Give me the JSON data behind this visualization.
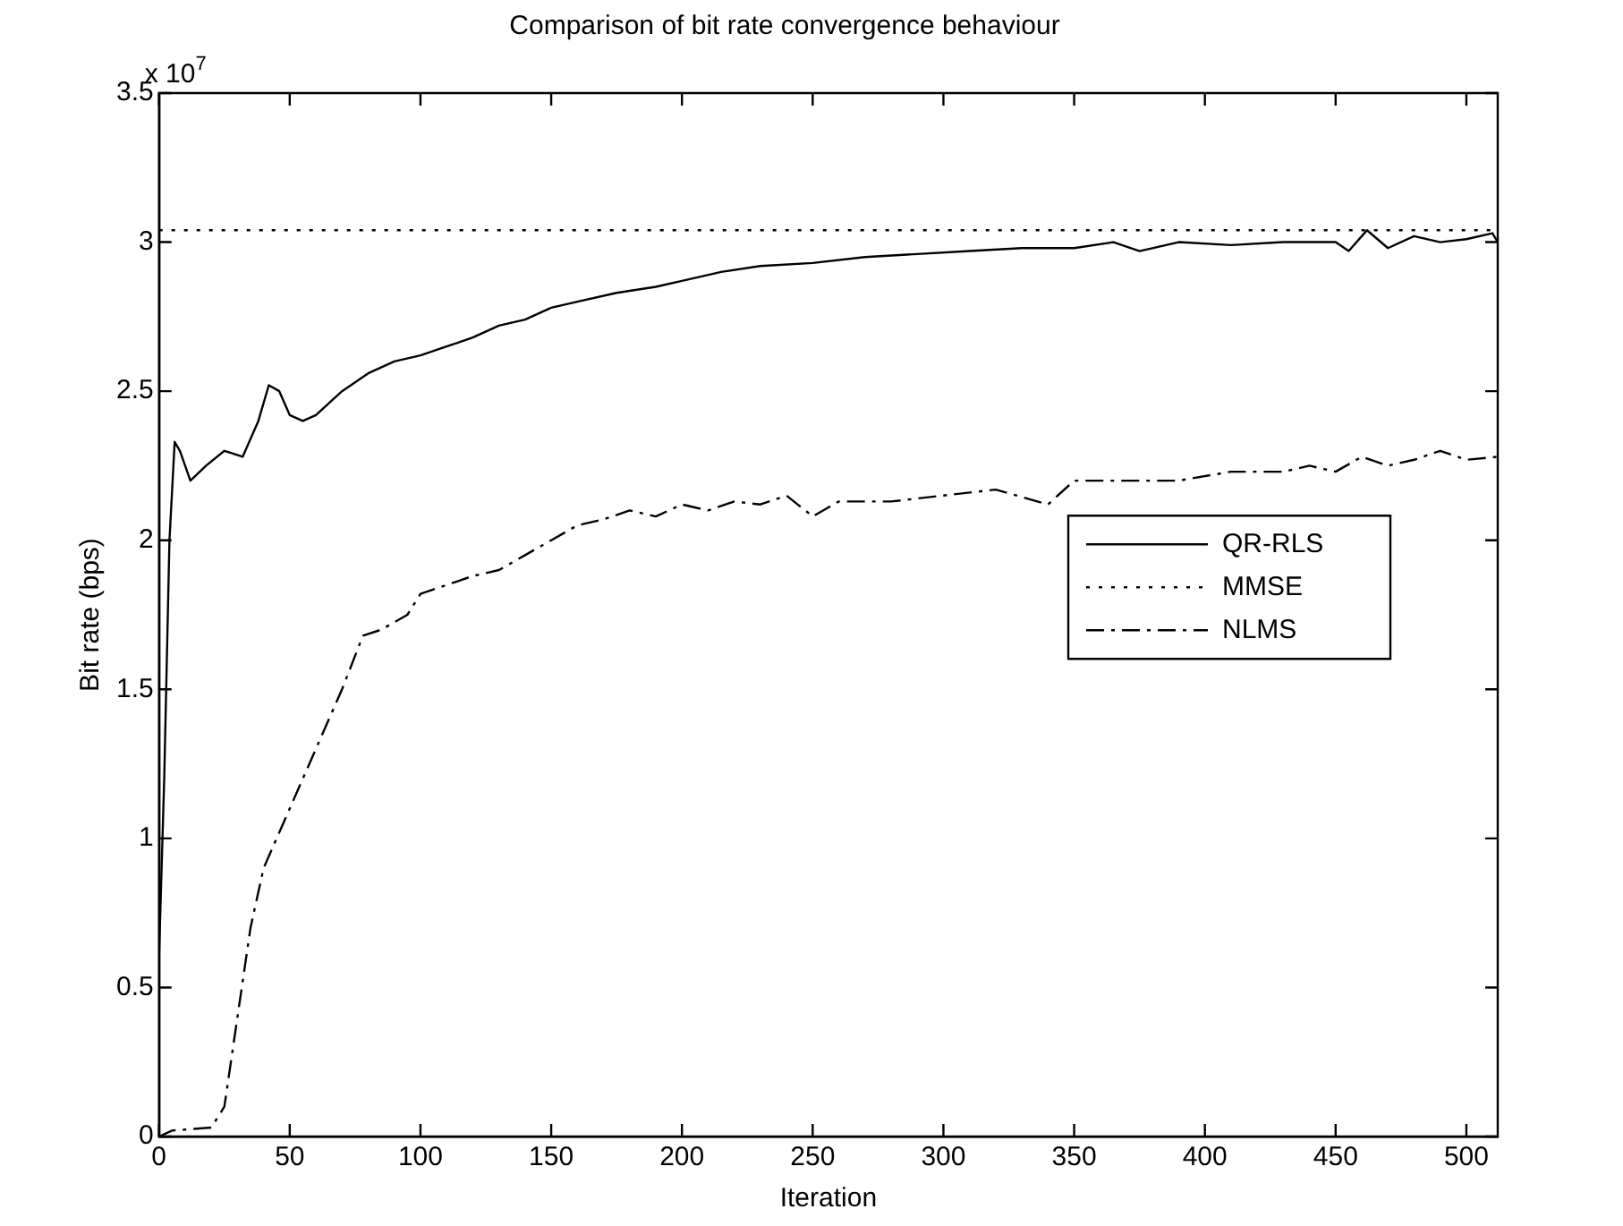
{
  "chart_data": {
    "type": "line",
    "title": "Comparison of bit rate convergence behaviour",
    "xlabel": "Iteration",
    "ylabel": "Bit rate (bps)",
    "annotations": [
      "x 10$^{7}$"
    ],
    "xlim": [
      0,
      512
    ],
    "xticks": [
      0,
      50,
      100,
      150,
      200,
      250,
      300,
      350,
      400,
      450,
      500
    ],
    "ylim": [
      0,
      3.5
    ],
    "yticks": [
      0,
      0.5,
      1,
      1.5,
      2,
      2.5,
      3,
      3.5
    ],
    "grid": false,
    "legend": "right",
    "marker": "none",
    "series": [
      {
        "name": "QR-RLS",
        "color": "#000000",
        "line_style": "solid",
        "x": [
          0,
          2,
          4,
          6,
          8,
          12,
          18,
          25,
          32,
          38,
          42,
          46,
          50,
          55,
          60,
          70,
          80,
          90,
          100,
          110,
          120,
          130,
          140,
          150,
          160,
          175,
          190,
          200,
          215,
          230,
          250,
          270,
          290,
          310,
          330,
          350,
          365,
          375,
          390,
          410,
          430,
          450,
          455,
          462,
          470,
          480,
          490,
          500,
          510,
          512
        ],
        "values": [
          0.6,
          1.2,
          2.0,
          2.33,
          2.3,
          2.2,
          2.25,
          2.3,
          2.28,
          2.4,
          2.52,
          2.5,
          2.42,
          2.4,
          2.42,
          2.5,
          2.56,
          2.6,
          2.62,
          2.65,
          2.68,
          2.72,
          2.74,
          2.78,
          2.8,
          2.83,
          2.85,
          2.87,
          2.9,
          2.92,
          2.93,
          2.95,
          2.96,
          2.97,
          2.98,
          2.98,
          3.0,
          2.97,
          3.0,
          2.99,
          3.0,
          3.0,
          2.97,
          3.04,
          2.98,
          3.02,
          3.0,
          3.01,
          3.03,
          3.0
        ]
      },
      {
        "name": "MMSE",
        "color": "#000000",
        "line_style": "dotted",
        "x": [
          0,
          512
        ],
        "values": [
          3.04,
          3.04
        ]
      },
      {
        "name": "NLMS",
        "color": "#000000",
        "line_style": "dashed",
        "x": [
          0,
          5,
          20,
          25,
          30,
          35,
          40,
          50,
          60,
          70,
          78,
          85,
          95,
          100,
          110,
          120,
          130,
          140,
          150,
          160,
          170,
          180,
          190,
          200,
          210,
          220,
          230,
          240,
          250,
          260,
          280,
          300,
          320,
          340,
          350,
          370,
          390,
          410,
          430,
          440,
          450,
          460,
          470,
          480,
          490,
          500,
          512
        ],
        "values": [
          0,
          0.02,
          0.03,
          0.1,
          0.4,
          0.7,
          0.9,
          1.1,
          1.3,
          1.5,
          1.68,
          1.7,
          1.75,
          1.82,
          1.85,
          1.88,
          1.9,
          1.95,
          2.0,
          2.05,
          2.07,
          2.1,
          2.08,
          2.12,
          2.1,
          2.13,
          2.12,
          2.15,
          2.08,
          2.13,
          2.13,
          2.15,
          2.17,
          2.12,
          2.2,
          2.2,
          2.2,
          2.23,
          2.23,
          2.25,
          2.23,
          2.28,
          2.25,
          2.27,
          2.3,
          2.27,
          2.28
        ]
      }
    ]
  }
}
